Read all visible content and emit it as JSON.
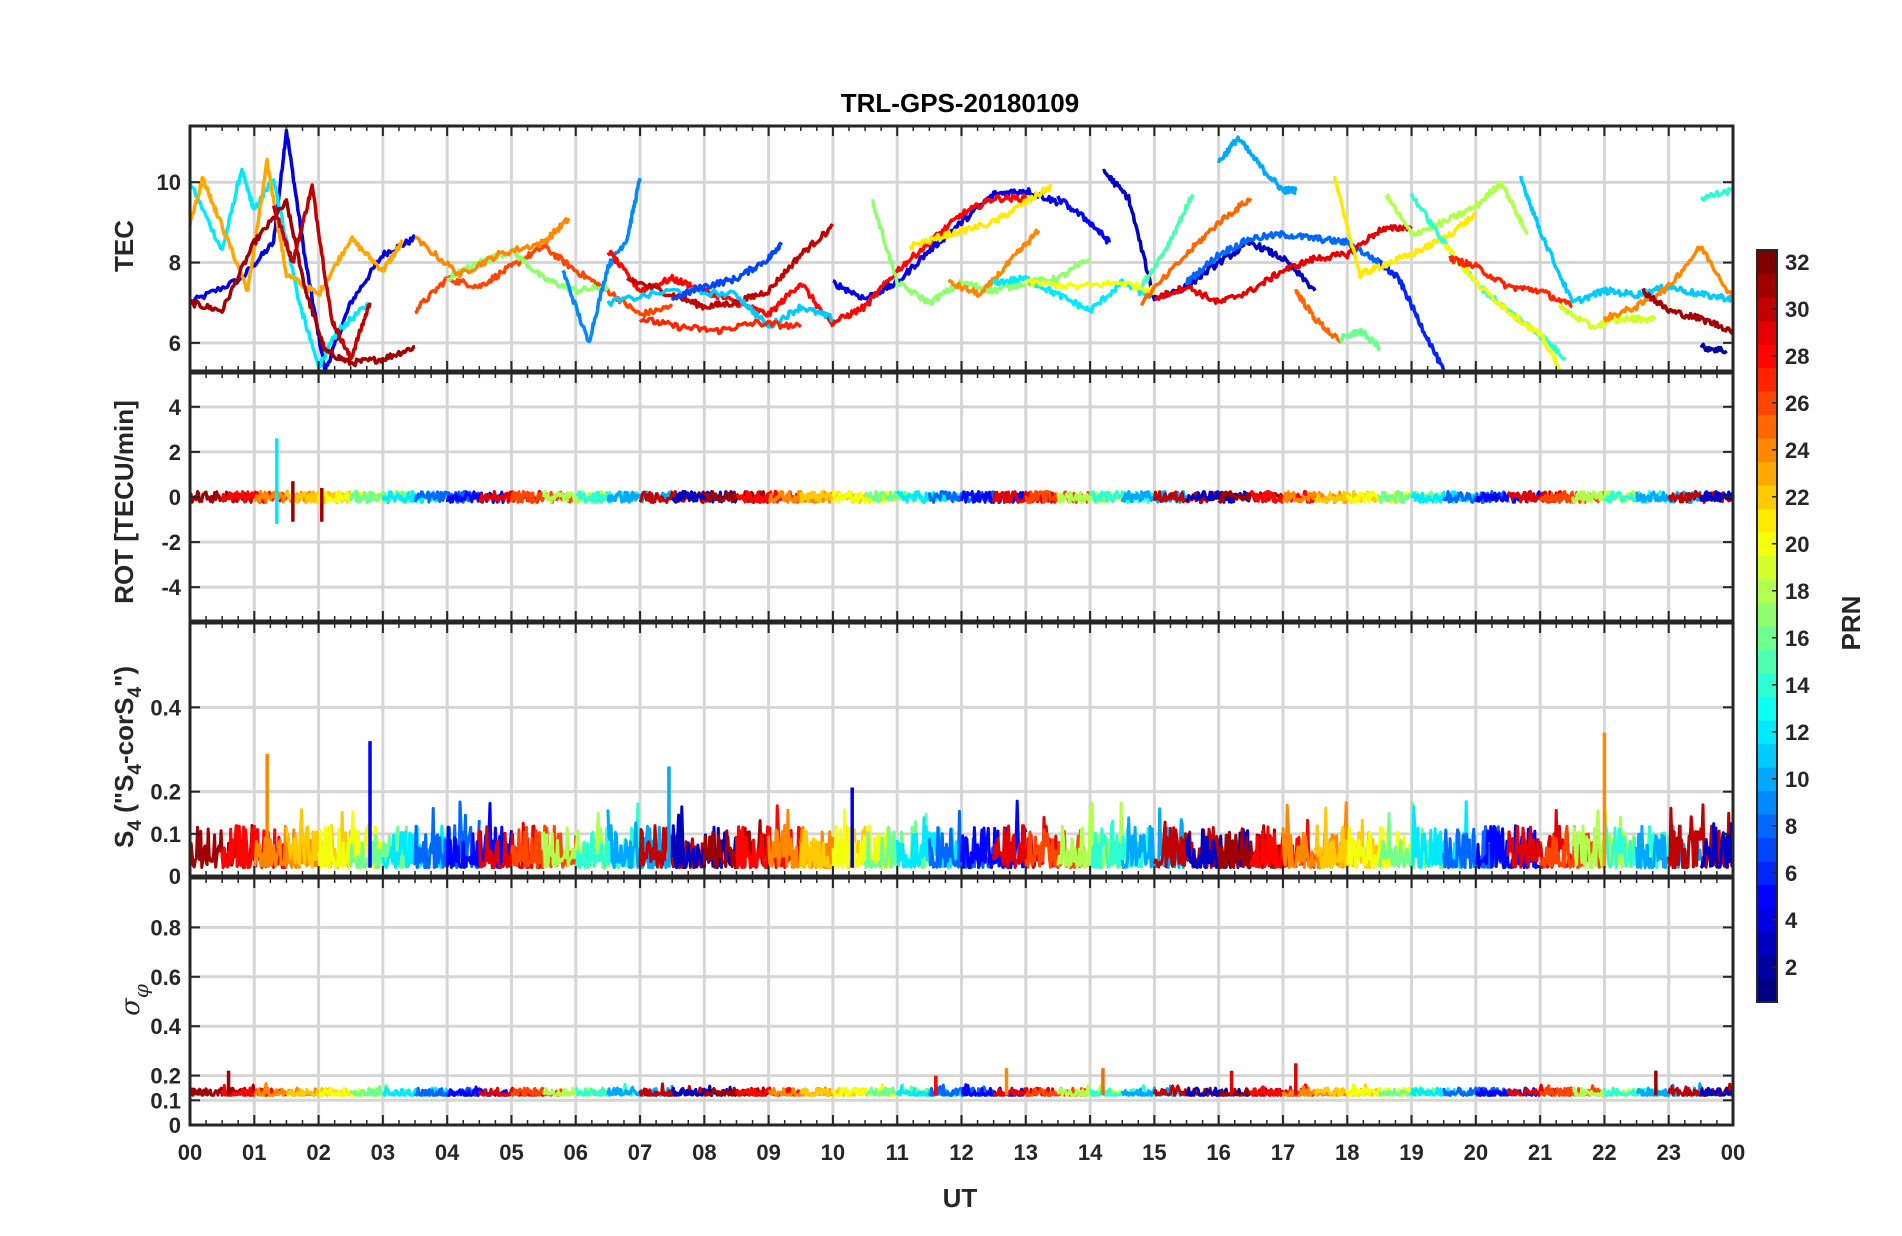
{
  "chart_data": {
    "type": "line",
    "title": "TRL-GPS-20180109",
    "xlabel": "UT",
    "x_ticks": [
      "00",
      "01",
      "02",
      "03",
      "04",
      "05",
      "06",
      "07",
      "08",
      "09",
      "10",
      "11",
      "12",
      "13",
      "14",
      "15",
      "16",
      "17",
      "18",
      "19",
      "20",
      "21",
      "22",
      "23",
      "00"
    ],
    "xlim": [
      0,
      24
    ],
    "colorbar": {
      "label": "PRN",
      "range": [
        1,
        32
      ],
      "ticks": [
        "2",
        "4",
        "6",
        "8",
        "10",
        "12",
        "14",
        "16",
        "18",
        "20",
        "22",
        "24",
        "26",
        "28",
        "30",
        "32"
      ]
    },
    "panels": [
      {
        "name": "tec",
        "ylabel": "TEC",
        "ylim": [
          5.3,
          11.4
        ],
        "yticks": [
          "6",
          "8",
          "10"
        ],
        "ytick_values": [
          6,
          8,
          10
        ],
        "series": [
          {
            "prn": 4,
            "x": [
              0.0,
              0.8,
              1.3,
              1.5,
              1.8,
              2.1,
              2.5,
              3.0,
              3.5
            ],
            "values": [
              7.0,
              7.6,
              8.5,
              11.3,
              8.0,
              5.3,
              7.0,
              8.2,
              8.6
            ]
          },
          {
            "prn": 12,
            "x": [
              0.0,
              0.5,
              0.8,
              1.0,
              1.3,
              1.7,
              2.0,
              2.3,
              2.8
            ],
            "values": [
              10.0,
              8.3,
              10.3,
              9.3,
              10.1,
              7.0,
              5.4,
              6.3,
              7.0
            ]
          },
          {
            "prn": 23,
            "x": [
              0.0,
              0.2,
              0.4,
              0.9,
              1.2,
              1.5,
              2.0,
              2.5,
              3.0,
              3.3
            ],
            "values": [
              9.0,
              10.1,
              9.3,
              7.3,
              10.5,
              7.7,
              7.2,
              8.6,
              7.8,
              8.5
            ]
          },
          {
            "prn": 31,
            "x": [
              0.0,
              0.5,
              1.0,
              1.5,
              1.8,
              2.1,
              2.5,
              3.0,
              3.5
            ],
            "values": [
              7.0,
              6.8,
              8.5,
              9.5,
              7.3,
              5.8,
              5.5,
              5.6,
              5.9
            ]
          },
          {
            "prn": 30,
            "x": [
              1.3,
              1.6,
              1.9,
              2.2,
              2.5,
              2.8
            ],
            "values": [
              9.4,
              8.0,
              9.9,
              6.6,
              5.6,
              7.0
            ]
          },
          {
            "prn": 26,
            "x": [
              3.5,
              4.0,
              4.5,
              5.0,
              5.5,
              6.0,
              6.5,
              7.0,
              7.5
            ],
            "values": [
              6.8,
              7.6,
              7.4,
              7.9,
              8.4,
              7.8,
              7.3,
              6.7,
              6.9
            ]
          },
          {
            "prn": 17,
            "x": [
              4.0,
              4.5,
              5.0,
              5.5,
              6.0,
              6.5
            ],
            "values": [
              7.6,
              8.0,
              8.3,
              7.6,
              7.3,
              7.4
            ]
          },
          {
            "prn": 24,
            "x": [
              3.5,
              4.2,
              4.8,
              5.5,
              5.9
            ],
            "values": [
              8.6,
              7.7,
              8.2,
              8.5,
              9.1
            ]
          },
          {
            "prn": 9,
            "x": [
              5.8,
              6.2,
              6.5,
              6.8,
              7.0
            ],
            "values": [
              7.8,
              6.0,
              7.9,
              8.6,
              10.1
            ]
          },
          {
            "prn": 28,
            "x": [
              6.5,
              7.0,
              7.5,
              8.0,
              8.5,
              9.0,
              9.5,
              10.0
            ],
            "values": [
              8.3,
              7.3,
              7.6,
              7.3,
              7.0,
              6.7,
              7.5,
              6.4
            ]
          },
          {
            "prn": 30,
            "x": [
              6.8,
              7.5,
              8.0,
              8.5,
              9.0,
              9.5,
              10.0
            ],
            "values": [
              7.6,
              7.2,
              6.9,
              7.0,
              7.3,
              8.2,
              8.9
            ]
          },
          {
            "prn": 11,
            "x": [
              6.5,
              7.5,
              8.5,
              9.0,
              9.5,
              10.0
            ],
            "values": [
              7.0,
              7.3,
              7.2,
              6.4,
              6.9,
              6.6
            ]
          },
          {
            "prn": 7,
            "x": [
              7.5,
              8.0,
              8.5,
              9.0,
              9.2
            ],
            "values": [
              7.1,
              7.4,
              7.6,
              8.1,
              8.5
            ]
          },
          {
            "prn": 27,
            "x": [
              7.0,
              7.6,
              8.2,
              8.8,
              9.5
            ],
            "values": [
              6.6,
              6.4,
              6.3,
              6.5,
              6.4
            ]
          },
          {
            "prn": 4,
            "x": [
              10.0,
              10.5,
              11.0,
              11.5,
              12.0,
              12.5,
              13.0,
              13.5
            ],
            "values": [
              7.5,
              7.1,
              7.5,
              8.3,
              9.0,
              9.7,
              9.8,
              9.5
            ]
          },
          {
            "prn": 28,
            "x": [
              10.0,
              10.5,
              11.0,
              11.5,
              12.0,
              12.5,
              13.0
            ],
            "values": [
              6.5,
              6.9,
              7.8,
              8.5,
              9.2,
              9.6,
              9.6
            ]
          },
          {
            "prn": 17,
            "x": [
              10.6,
              11.0,
              11.5,
              12.0,
              12.5,
              13.0,
              13.5,
              14.0
            ],
            "values": [
              9.6,
              7.5,
              7.0,
              7.5,
              7.3,
              7.5,
              7.6,
              8.1
            ]
          },
          {
            "prn": 21,
            "x": [
              11.2,
              11.8,
              12.5,
              13.0,
              13.4
            ],
            "values": [
              8.4,
              8.7,
              9.0,
              9.5,
              9.9
            ]
          },
          {
            "prn": 24,
            "x": [
              11.8,
              12.3,
              12.8,
              13.2
            ],
            "values": [
              7.5,
              7.2,
              8.1,
              8.8
            ]
          },
          {
            "prn": 12,
            "x": [
              12.5,
              13.0,
              13.5,
              14.0,
              14.5,
              15.0
            ],
            "values": [
              7.5,
              7.6,
              7.2,
              6.8,
              7.5,
              7.1
            ]
          },
          {
            "prn": 5,
            "x": [
              13.5,
              14.0,
              14.3
            ],
            "values": [
              9.6,
              9.0,
              8.5
            ]
          },
          {
            "prn": 3,
            "x": [
              14.2,
              14.6,
              15.0,
              15.5,
              16.0,
              16.5,
              17.0,
              17.5
            ],
            "values": [
              10.3,
              9.6,
              7.1,
              7.4,
              8.0,
              8.5,
              8.1,
              7.3
            ]
          },
          {
            "prn": 20,
            "x": [
              13.0,
              13.8,
              14.5,
              15.0
            ],
            "values": [
              7.5,
              7.4,
              7.5,
              7.3
            ]
          },
          {
            "prn": 15,
            "x": [
              14.8,
              15.2,
              15.6
            ],
            "values": [
              7.4,
              8.4,
              9.7
            ]
          },
          {
            "prn": 25,
            "x": [
              14.8,
              15.5,
              16.0,
              16.5
            ],
            "values": [
              7.0,
              8.2,
              9.0,
              9.6
            ]
          },
          {
            "prn": 10,
            "x": [
              16.0,
              16.3,
              16.7,
              17.0,
              17.2
            ],
            "values": [
              10.5,
              11.1,
              10.3,
              9.8,
              9.8
            ]
          },
          {
            "prn": 8,
            "x": [
              15.5,
              16.0,
              16.5,
              17.0,
              17.5,
              18.0,
              18.5
            ],
            "values": [
              7.5,
              8.2,
              8.6,
              8.7,
              8.6,
              8.5,
              8.0
            ]
          },
          {
            "prn": 29,
            "x": [
              15.0,
              15.5,
              16.0,
              16.5,
              17.0,
              17.5,
              18.0,
              18.5,
              19.0
            ],
            "values": [
              7.1,
              7.4,
              7.0,
              7.3,
              7.8,
              8.1,
              8.2,
              8.8,
              8.9
            ]
          },
          {
            "prn": 25,
            "x": [
              17.2,
              17.5,
              17.9
            ],
            "values": [
              7.3,
              6.6,
              6.0
            ]
          },
          {
            "prn": 6,
            "x": [
              18.5,
              18.8,
              19.1,
              19.5
            ],
            "values": [
              8.0,
              7.6,
              6.6,
              5.3
            ]
          },
          {
            "prn": 21,
            "x": [
              17.8,
              18.2,
              18.5,
              19.0,
              19.5,
              20.0
            ],
            "values": [
              10.1,
              7.7,
              7.9,
              8.2,
              8.6,
              9.2
            ]
          },
          {
            "prn": 16,
            "x": [
              17.9,
              18.2,
              18.5
            ],
            "values": [
              6.1,
              6.3,
              5.9
            ]
          },
          {
            "prn": 18,
            "x": [
              18.6,
              19.0,
              19.5,
              20.0,
              20.4,
              20.8
            ],
            "values": [
              9.7,
              8.7,
              9.0,
              9.4,
              10.0,
              8.7
            ]
          },
          {
            "prn": 14,
            "x": [
              19.0,
              19.5,
              20.0,
              20.5,
              21.0,
              21.4
            ],
            "values": [
              9.7,
              8.5,
              7.5,
              6.8,
              6.2,
              5.6
            ]
          },
          {
            "prn": 20,
            "x": [
              19.5,
              20.0,
              20.5,
              21.0,
              21.3
            ],
            "values": [
              8.5,
              7.5,
              6.8,
              6.2,
              5.4
            ]
          },
          {
            "prn": 27,
            "x": [
              19.6,
              20.0,
              20.5,
              21.0,
              21.5
            ],
            "values": [
              8.1,
              7.9,
              7.4,
              7.3,
              6.9
            ]
          },
          {
            "prn": 11,
            "x": [
              20.7,
              21.0,
              21.5,
              22.0,
              22.5,
              23.0,
              23.5,
              24.0
            ],
            "values": [
              10.1,
              8.8,
              7.0,
              7.3,
              7.2,
              7.4,
              7.2,
              7.1
            ]
          },
          {
            "prn": 19,
            "x": [
              21.3,
              21.8,
              22.3,
              22.8
            ],
            "values": [
              6.9,
              6.4,
              6.6,
              6.6
            ]
          },
          {
            "prn": 24,
            "x": [
              22.0,
              22.5,
              23.0,
              23.5,
              24.0
            ],
            "values": [
              6.6,
              6.9,
              7.4,
              8.4,
              7.1
            ]
          },
          {
            "prn": 31,
            "x": [
              22.6,
              23.0,
              23.5,
              24.0
            ],
            "values": [
              7.3,
              6.8,
              6.6,
              6.3
            ]
          },
          {
            "prn": 2,
            "x": [
              23.5,
              23.9
            ],
            "values": [
              5.9,
              5.8
            ]
          },
          {
            "prn": 14,
            "x": [
              23.5,
              24.0
            ],
            "values": [
              9.6,
              9.8
            ]
          }
        ]
      },
      {
        "name": "rot",
        "ylabel": "ROT [TECU/min]",
        "ylim": [
          -5.5,
          5.5
        ],
        "yticks": [
          "4",
          "2",
          "0",
          "-2",
          "-4"
        ],
        "ytick_values": [
          4,
          2,
          0,
          -2,
          -4
        ],
        "noise_band": {
          "center": 0.0,
          "amplitude": 0.25
        },
        "spikes": [
          {
            "x": 1.35,
            "values": [
              2.6,
              -1.2
            ],
            "prn": 12
          },
          {
            "x": 1.6,
            "values": [
              0.7,
              -1.1
            ],
            "prn": 31
          },
          {
            "x": 2.05,
            "values": [
              0.4,
              -1.1
            ],
            "prn": 31
          }
        ]
      },
      {
        "name": "s4",
        "ylabel": "S4 (\"S4-corS4\")",
        "ylabel_main": "S",
        "ylabel_sub": "4",
        "ylabel_rest": " (\"S",
        "ylabel_sub2": "4",
        "ylabel_mid": "-corS",
        "ylabel_sub3": "4",
        "ylabel_end": "\")",
        "ylim": [
          0,
          0.6
        ],
        "yticks": [
          "0.4",
          "0.2",
          "0.1",
          "0"
        ],
        "ytick_values": [
          0.4,
          0.2,
          0.1,
          0
        ],
        "noise_band": {
          "base": 0.02,
          "amplitude": 0.1
        },
        "spikes": [
          {
            "x": 1.2,
            "value": 0.29,
            "prn": 24
          },
          {
            "x": 2.8,
            "value": 0.32,
            "prn": 5
          },
          {
            "x": 7.45,
            "value": 0.26,
            "prn": 10
          },
          {
            "x": 10.3,
            "value": 0.21,
            "prn": 4
          },
          {
            "x": 22.0,
            "value": 0.34,
            "prn": 24
          }
        ]
      },
      {
        "name": "sigma_phi",
        "ylabel": "σφ",
        "ylabel_main": "σ",
        "ylabel_sub": "φ",
        "ylim": [
          0,
          1.0
        ],
        "yticks": [
          "0.8",
          "0.6",
          "0.4",
          "0.2",
          "0.1",
          "0"
        ],
        "ytick_values": [
          0.8,
          0.6,
          0.4,
          0.2,
          0.1,
          0
        ],
        "noise_band": {
          "base": 0.12,
          "amplitude": 0.03
        },
        "spikes": [
          {
            "x": 0.6,
            "value": 0.22,
            "prn": 31
          },
          {
            "x": 11.6,
            "value": 0.2,
            "prn": 28
          },
          {
            "x": 12.7,
            "value": 0.23,
            "prn": 24
          },
          {
            "x": 14.2,
            "value": 0.23,
            "prn": 25
          },
          {
            "x": 16.2,
            "value": 0.22,
            "prn": 29
          },
          {
            "x": 17.2,
            "value": 0.25,
            "prn": 29
          },
          {
            "x": 22.8,
            "value": 0.22,
            "prn": 31
          }
        ]
      }
    ]
  }
}
